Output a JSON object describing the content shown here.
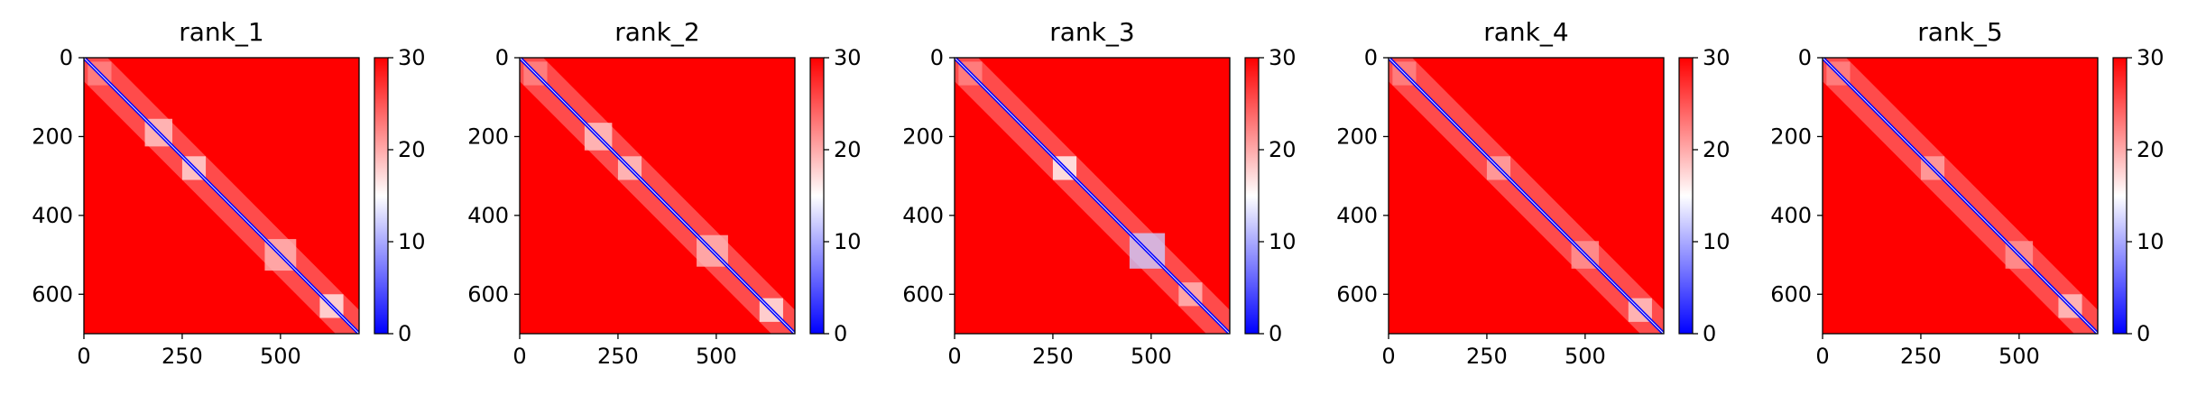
{
  "chart_data": [
    {
      "type": "heatmap",
      "title": "rank_1",
      "xlim": [
        0,
        700
      ],
      "ylim": [
        700,
        0
      ],
      "xticks": [
        "0",
        "250",
        "500"
      ],
      "yticks": [
        "0",
        "200",
        "400",
        "600"
      ],
      "colorbar": {
        "min": 0,
        "max": 30,
        "ticks": [
          "0",
          "10",
          "20",
          "30"
        ],
        "colors": [
          "#0000ff",
          "#ffffff",
          "#ff0000"
        ]
      },
      "diagonal_low_blocks": [
        {
          "center": 40,
          "size": 60,
          "value": 22
        },
        {
          "center": 190,
          "size": 70,
          "value": 18
        },
        {
          "center": 280,
          "size": 60,
          "value": 17
        },
        {
          "center": 500,
          "size": 80,
          "value": 19
        },
        {
          "center": 630,
          "size": 60,
          "value": 16
        }
      ]
    },
    {
      "type": "heatmap",
      "title": "rank_2",
      "xlim": [
        0,
        700
      ],
      "ylim": [
        700,
        0
      ],
      "xticks": [
        "0",
        "250",
        "500"
      ],
      "yticks": [
        "0",
        "200",
        "400",
        "600"
      ],
      "colorbar": {
        "min": 0,
        "max": 30,
        "ticks": [
          "0",
          "10",
          "20",
          "30"
        ],
        "colors": [
          "#0000ff",
          "#ffffff",
          "#ff0000"
        ]
      },
      "diagonal_low_blocks": [
        {
          "center": 40,
          "size": 60,
          "value": 22
        },
        {
          "center": 200,
          "size": 70,
          "value": 18
        },
        {
          "center": 280,
          "size": 60,
          "value": 18
        },
        {
          "center": 490,
          "size": 80,
          "value": 19
        },
        {
          "center": 640,
          "size": 60,
          "value": 16
        }
      ]
    },
    {
      "type": "heatmap",
      "title": "rank_3",
      "xlim": [
        0,
        700
      ],
      "ylim": [
        700,
        0
      ],
      "xticks": [
        "0",
        "250",
        "500"
      ],
      "yticks": [
        "0",
        "200",
        "400",
        "600"
      ],
      "colorbar": {
        "min": 0,
        "max": 30,
        "ticks": [
          "0",
          "10",
          "20",
          "30"
        ],
        "colors": [
          "#0000ff",
          "#ffffff",
          "#ff0000"
        ]
      },
      "diagonal_low_blocks": [
        {
          "center": 40,
          "size": 60,
          "value": 22
        },
        {
          "center": 280,
          "size": 60,
          "value": 15
        },
        {
          "center": 490,
          "size": 90,
          "value": 12
        },
        {
          "center": 600,
          "size": 60,
          "value": 19
        }
      ]
    },
    {
      "type": "heatmap",
      "title": "rank_4",
      "xlim": [
        0,
        700
      ],
      "ylim": [
        700,
        0
      ],
      "xticks": [
        "0",
        "250",
        "500"
      ],
      "yticks": [
        "0",
        "200",
        "400",
        "600"
      ],
      "colorbar": {
        "min": 0,
        "max": 30,
        "ticks": [
          "0",
          "10",
          "20",
          "30"
        ],
        "colors": [
          "#0000ff",
          "#ffffff",
          "#ff0000"
        ]
      },
      "diagonal_low_blocks": [
        {
          "center": 40,
          "size": 60,
          "value": 22
        },
        {
          "center": 280,
          "size": 60,
          "value": 20
        },
        {
          "center": 500,
          "size": 70,
          "value": 21
        },
        {
          "center": 640,
          "size": 60,
          "value": 18
        }
      ]
    },
    {
      "type": "heatmap",
      "title": "rank_5",
      "xlim": [
        0,
        700
      ],
      "ylim": [
        700,
        0
      ],
      "xticks": [
        "0",
        "250",
        "500"
      ],
      "yticks": [
        "0",
        "200",
        "400",
        "600"
      ],
      "colorbar": {
        "min": 0,
        "max": 30,
        "ticks": [
          "0",
          "10",
          "20",
          "30"
        ],
        "colors": [
          "#0000ff",
          "#ffffff",
          "#ff0000"
        ]
      },
      "diagonal_low_blocks": [
        {
          "center": 40,
          "size": 60,
          "value": 22
        },
        {
          "center": 280,
          "size": 60,
          "value": 20
        },
        {
          "center": 500,
          "size": 70,
          "value": 21
        },
        {
          "center": 630,
          "size": 60,
          "value": 18
        }
      ]
    }
  ]
}
